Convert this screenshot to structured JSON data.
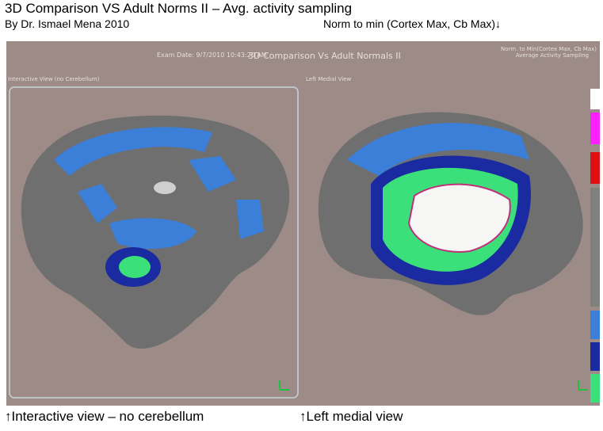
{
  "header": {
    "title": "3D Comparison VS Adult Norms II – Avg. activity sampling",
    "author": "By Dr. Ismael Mena 2010",
    "note": "Norm to min (Cortex Max, Cb Max)↓"
  },
  "image": {
    "exam_date": "Exam Date: 9/7/2010 10:43:20 AM",
    "title": "3D Comparison Vs Adult Normals II",
    "norm": "Norm. to Min(Cortex Max, Cb Max)",
    "sampling": "Average Activity Sampling",
    "left_panel": "Interactive View (no Cerebellum)",
    "right_panel": "Left Medial View"
  },
  "captions": [
    "↑Interactive view – no cerebellum",
    "↑Left medial view"
  ]
}
